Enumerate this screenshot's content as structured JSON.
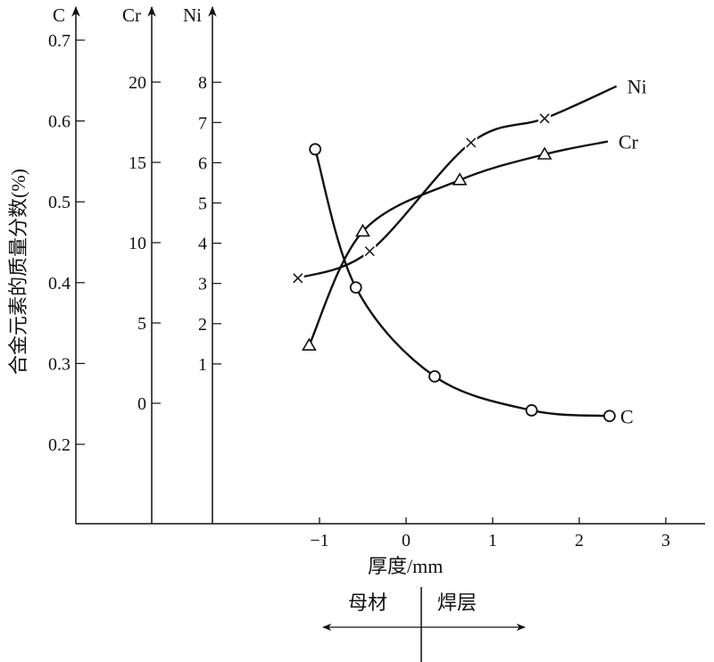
{
  "chart_data": {
    "type": "line",
    "title": "",
    "xlabel": "厚度/mm",
    "ylabel": "合金元素的质量分数(%)",
    "xlim": [
      -1.3,
      3.3
    ],
    "xticks": [
      "−1",
      "0",
      "1",
      "2",
      "3"
    ],
    "xtick_values": [
      -1,
      0,
      1,
      2,
      3
    ],
    "region_labels": {
      "left": "母材",
      "right": "焊层"
    },
    "axes": [
      {
        "name": "C",
        "ticks": [
          "0.7",
          "0.6",
          "0.5",
          "0.4",
          "0.3",
          "0.2"
        ],
        "tick_values": [
          0.7,
          0.6,
          0.5,
          0.4,
          0.3,
          0.2
        ],
        "ylim": [
          0.12,
          0.75
        ]
      },
      {
        "name": "Cr",
        "ticks": [
          "20",
          "15",
          "10",
          "5",
          "0"
        ],
        "tick_values": [
          20,
          15,
          10,
          5,
          0
        ],
        "ylim": [
          -7.5,
          25
        ]
      },
      {
        "name": "Ni",
        "ticks": [
          "8",
          "7",
          "6",
          "5",
          "4",
          "3",
          "2",
          "1"
        ],
        "tick_values": [
          8,
          7,
          6,
          5,
          4,
          3,
          2,
          1
        ],
        "ylim": [
          -3,
          9.8
        ]
      }
    ],
    "series": [
      {
        "name": "C",
        "axis": 0,
        "marker": "circle",
        "x": [
          -1.05,
          -0.58,
          0.33,
          1.45,
          2.35
        ],
        "y": [
          0.565,
          0.394,
          0.284,
          0.242,
          0.235
        ],
        "curve_end": null
      },
      {
        "name": "Cr",
        "axis": 1,
        "marker": "triangle",
        "x": [
          -1.12,
          -0.5,
          0.62,
          1.6
        ],
        "y": [
          3.6,
          10.7,
          13.9,
          15.5
        ],
        "curve_end": [
          2.33,
          16.3
        ]
      },
      {
        "name": "Ni",
        "axis": 2,
        "marker": "cross",
        "x": [
          -1.25,
          -0.42,
          0.75,
          1.6
        ],
        "y": [
          3.13,
          3.8,
          6.5,
          7.1
        ],
        "curve_end": [
          2.43,
          7.9
        ]
      }
    ]
  }
}
